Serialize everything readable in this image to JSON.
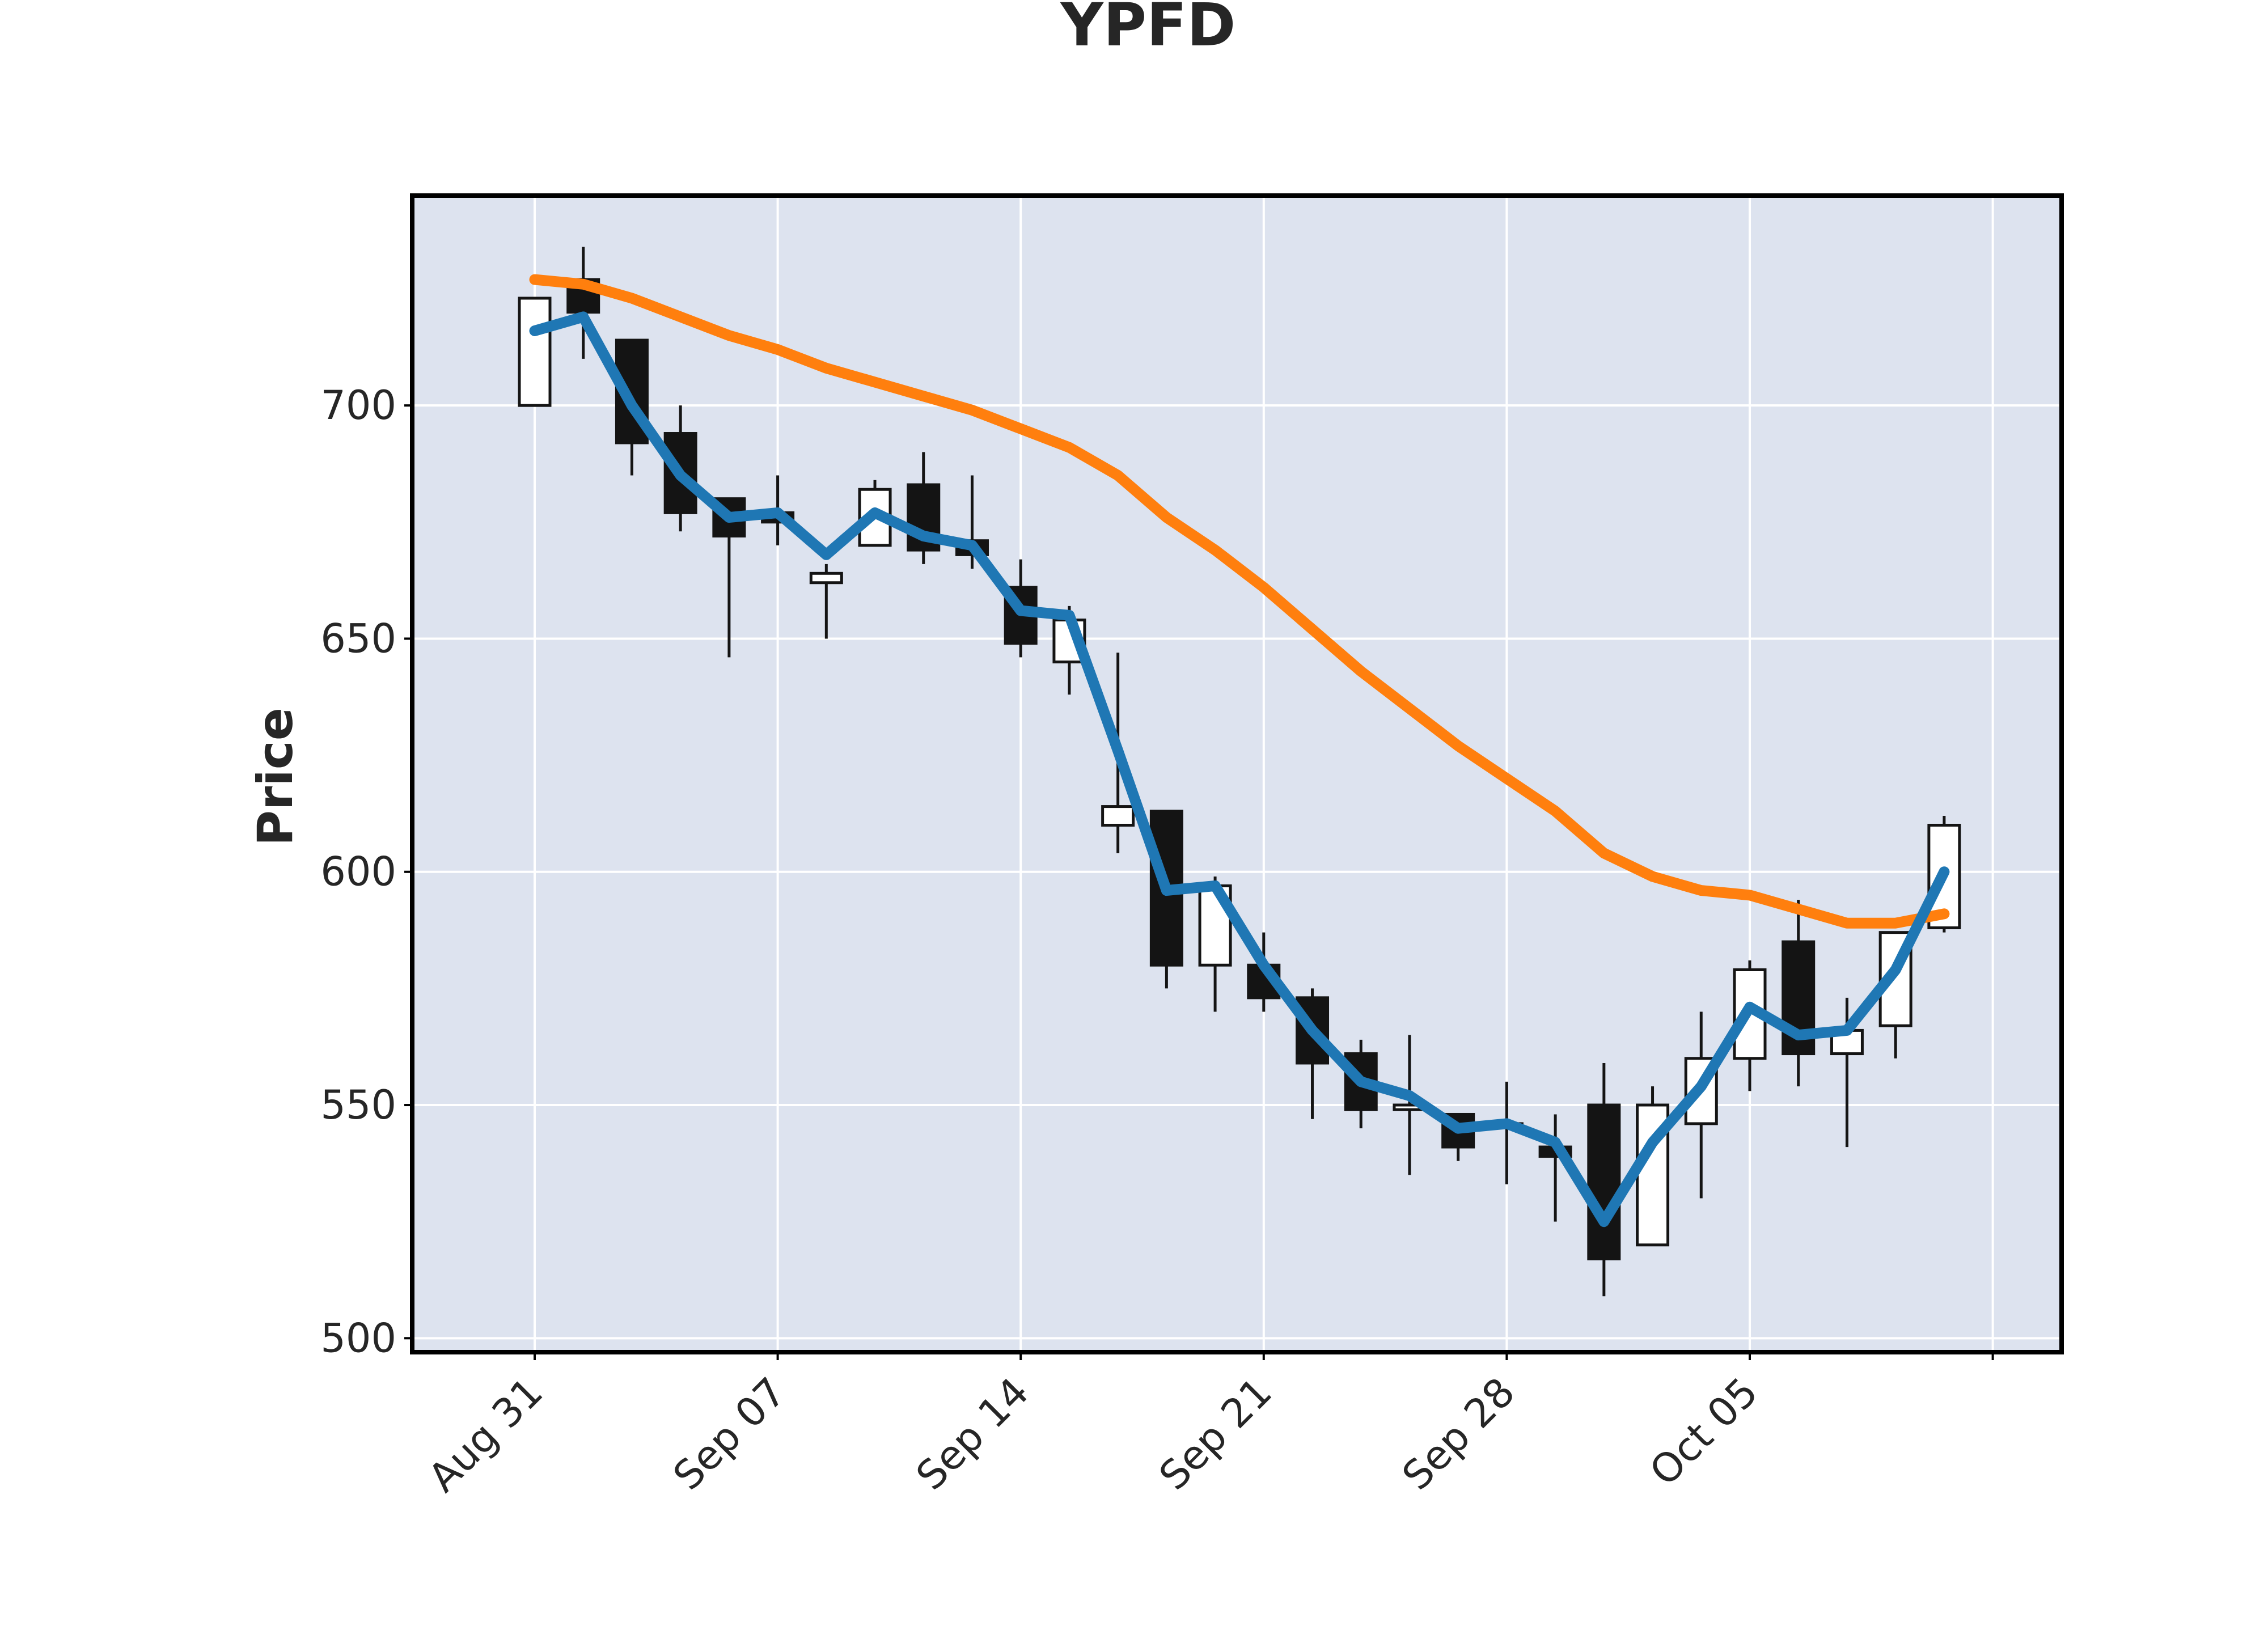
{
  "chart_data": {
    "type": "candlestick",
    "title": "YPFD",
    "ylabel": "Price",
    "xlabel": "",
    "ylim": [
      497,
      745
    ],
    "y_ticks": [
      500,
      550,
      600,
      650,
      700
    ],
    "x_ticks": [
      {
        "label": "Aug 31",
        "date": "Aug 31"
      },
      {
        "label": "Sep 07",
        "date": "Sep 07"
      },
      {
        "label": "Sep 14",
        "date": "Sep 14"
      },
      {
        "label": "Sep 21",
        "date": "Sep 21"
      },
      {
        "label": "Sep 28",
        "date": "Sep 28"
      },
      {
        "label": "Oct 05",
        "date": "Oct 05"
      }
    ],
    "grid": true,
    "style": {
      "plot_background": "#dde3ef",
      "up_candle_fill": "#ffffff",
      "down_candle_fill": "#141414",
      "candle_edge": "#141414",
      "ma_short_color": "#1f77b4",
      "ma_long_color": "#ff7f0e"
    },
    "candles": [
      {
        "date": "Aug 31",
        "open": 700,
        "high": 723,
        "low": 700,
        "close": 723
      },
      {
        "date": "Sep 01",
        "open": 727,
        "high": 734,
        "low": 710,
        "close": 720
      },
      {
        "date": "Sep 02",
        "open": 714,
        "high": 714,
        "low": 685,
        "close": 692
      },
      {
        "date": "Sep 03",
        "open": 694,
        "high": 700,
        "low": 673,
        "close": 677
      },
      {
        "date": "Sep 04",
        "open": 680,
        "high": 680,
        "low": 646,
        "close": 672
      },
      {
        "date": "Sep 07",
        "open": 677,
        "high": 685,
        "low": 670,
        "close": 675
      },
      {
        "date": "Sep 08",
        "open": 662,
        "high": 666,
        "low": 650,
        "close": 664
      },
      {
        "date": "Sep 09",
        "open": 670,
        "high": 684,
        "low": 670,
        "close": 682
      },
      {
        "date": "Sep 10",
        "open": 683,
        "high": 690,
        "low": 666,
        "close": 669
      },
      {
        "date": "Sep 11",
        "open": 671,
        "high": 685,
        "low": 665,
        "close": 668
      },
      {
        "date": "Sep 14",
        "open": 661,
        "high": 667,
        "low": 646,
        "close": 649
      },
      {
        "date": "Sep 15",
        "open": 645,
        "high": 657,
        "low": 638,
        "close": 654
      },
      {
        "date": "Sep 16",
        "open": 610,
        "high": 647,
        "low": 604,
        "close": 614
      },
      {
        "date": "Sep 17",
        "open": 613,
        "high": 613,
        "low": 575,
        "close": 580
      },
      {
        "date": "Sep 18",
        "open": 580,
        "high": 599,
        "low": 570,
        "close": 597
      },
      {
        "date": "Sep 21",
        "open": 580,
        "high": 587,
        "low": 570,
        "close": 573
      },
      {
        "date": "Sep 22",
        "open": 573,
        "high": 575,
        "low": 547,
        "close": 559
      },
      {
        "date": "Sep 23",
        "open": 561,
        "high": 564,
        "low": 545,
        "close": 549
      },
      {
        "date": "Sep 24",
        "open": 549,
        "high": 565,
        "low": 535,
        "close": 550
      },
      {
        "date": "Sep 25",
        "open": 548,
        "high": 548,
        "low": 538,
        "close": 541
      },
      {
        "date": "Sep 28",
        "open": 546,
        "high": 555,
        "low": 533,
        "close": 546
      },
      {
        "date": "Sep 29",
        "open": 541,
        "high": 548,
        "low": 525,
        "close": 539
      },
      {
        "date": "Sep 30",
        "open": 550,
        "high": 559,
        "low": 509,
        "close": 517
      },
      {
        "date": "Oct 01",
        "open": 520,
        "high": 554,
        "low": 520,
        "close": 550
      },
      {
        "date": "Oct 02",
        "open": 546,
        "high": 570,
        "low": 530,
        "close": 560
      },
      {
        "date": "Oct 05",
        "open": 560,
        "high": 581,
        "low": 553,
        "close": 579
      },
      {
        "date": "Oct 06",
        "open": 585,
        "high": 594,
        "low": 554,
        "close": 561
      },
      {
        "date": "Oct 07",
        "open": 561,
        "high": 573,
        "low": 541,
        "close": 566
      },
      {
        "date": "Oct 08",
        "open": 567,
        "high": 587,
        "low": 560,
        "close": 587
      },
      {
        "date": "Oct 09",
        "open": 588,
        "high": 612,
        "low": 587,
        "close": 610
      }
    ],
    "series": [
      {
        "values": [
          716,
          719,
          700,
          685,
          676,
          677,
          668,
          677,
          672,
          670,
          656,
          655,
          626,
          596,
          597,
          580,
          566,
          555,
          552,
          545,
          546,
          542,
          525,
          542,
          554,
          571,
          565,
          566,
          579,
          600
        ]
      },
      {
        "values": [
          727,
          726,
          723,
          719,
          715,
          712,
          708,
          705,
          702,
          699,
          695,
          691,
          685,
          676,
          669,
          661,
          652,
          643,
          635,
          627,
          620,
          613,
          604,
          599,
          596,
          595,
          592,
          589,
          589,
          591
        ]
      }
    ]
  }
}
